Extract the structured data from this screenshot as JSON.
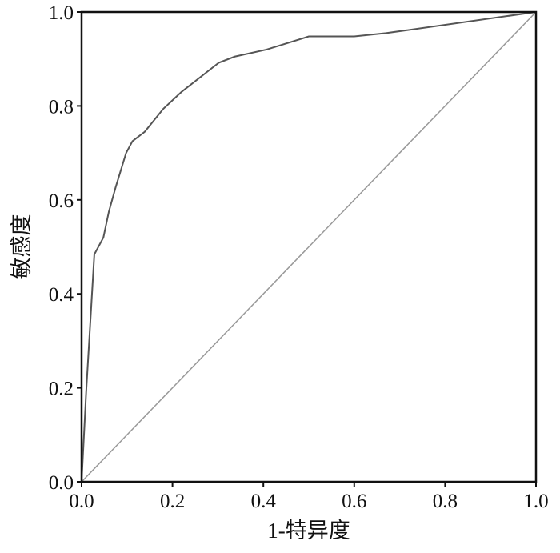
{
  "chart_data": {
    "type": "line",
    "title": "",
    "xlabel": "1-特异度",
    "ylabel": "敏感度",
    "xlim": [
      0,
      1
    ],
    "ylim": [
      0,
      1
    ],
    "xticks": [
      "0.0",
      "0.2",
      "0.4",
      "0.6",
      "0.8",
      "1.0"
    ],
    "yticks": [
      "0.0",
      "0.2",
      "0.4",
      "0.6",
      "0.8",
      "1.0"
    ],
    "grid": false,
    "series": [
      {
        "color": "#555555",
        "x": [
          0,
          0.01,
          0.028,
          0.048,
          0.06,
          0.075,
          0.098,
          0.112,
          0.139,
          0.18,
          0.22,
          0.302,
          0.337,
          0.407,
          0.5,
          0.6,
          0.67,
          1.0
        ],
        "y": [
          0,
          0.19,
          0.484,
          0.52,
          0.575,
          0.627,
          0.7,
          0.725,
          0.745,
          0.794,
          0.83,
          0.892,
          0.905,
          0.92,
          0.948,
          0.948,
          0.955,
          1.0
        ]
      },
      {
        "color": "#999999",
        "x": [
          0,
          1
        ],
        "y": [
          0,
          1
        ]
      }
    ]
  }
}
